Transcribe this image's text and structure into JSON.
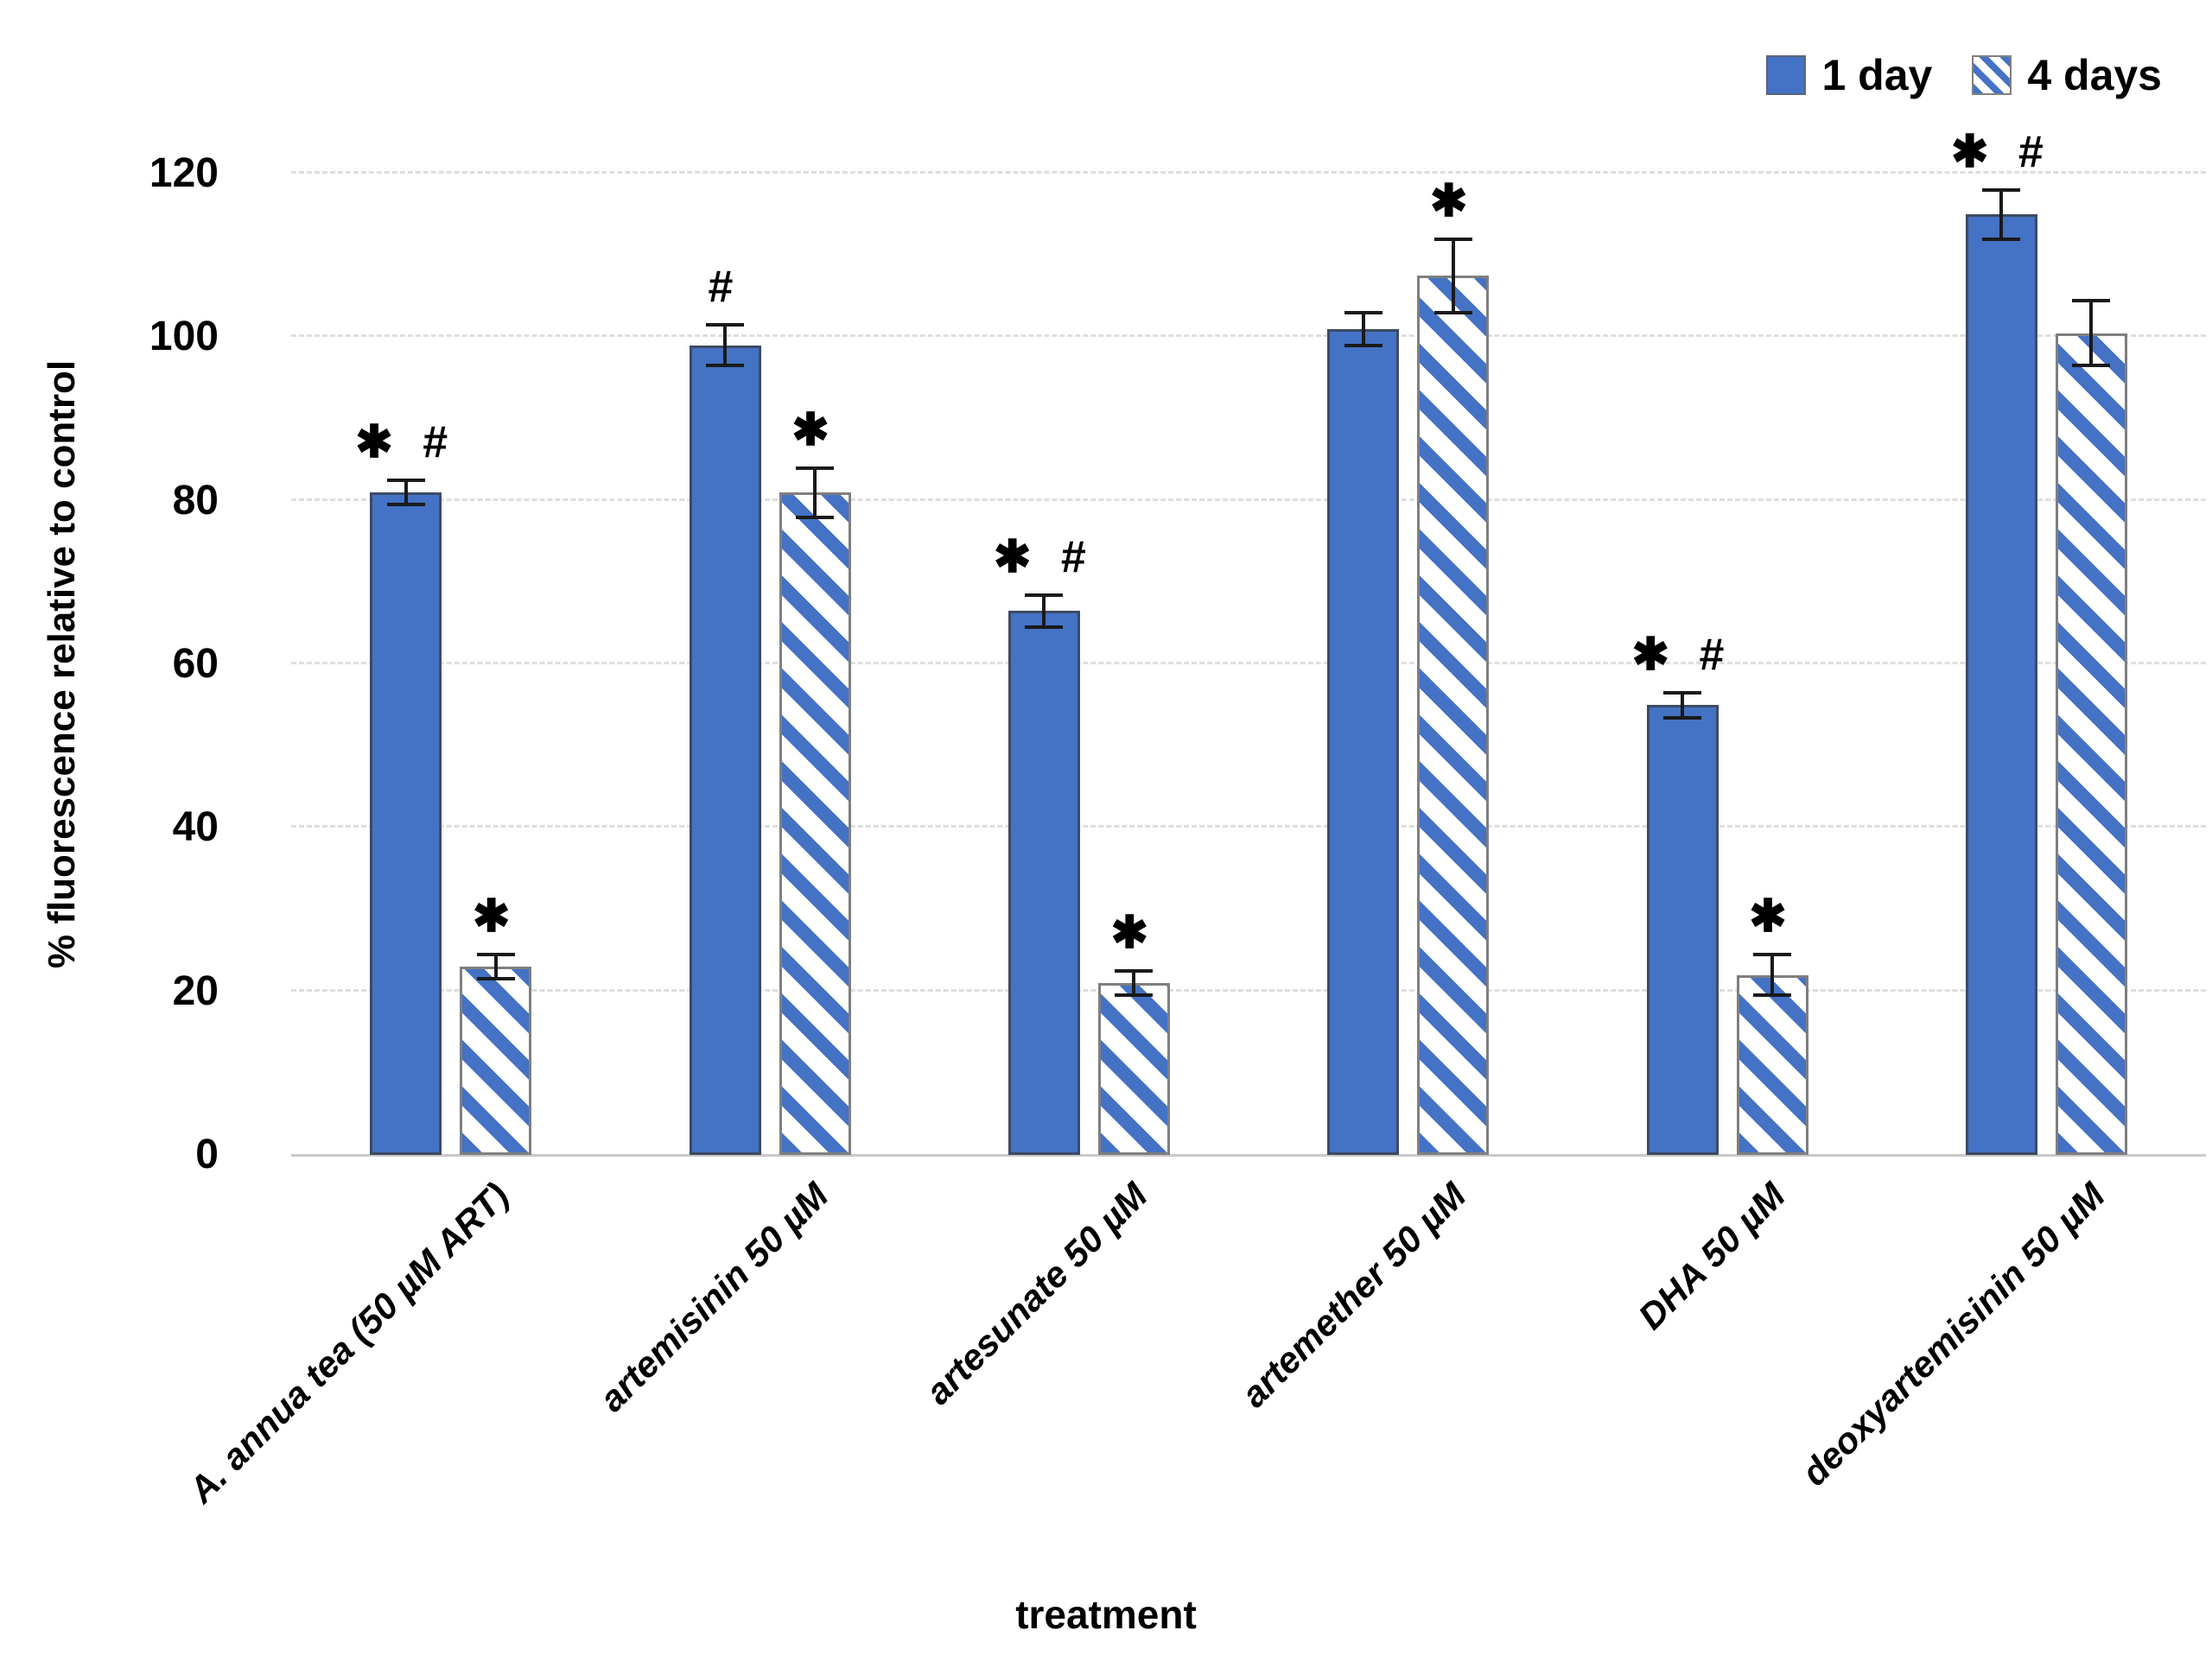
{
  "chart_data": {
    "type": "bar",
    "title": "",
    "xlabel": "treatment",
    "ylabel": "% fluorescence relative to control",
    "ylim": [
      0,
      120
    ],
    "yticks": [
      0,
      20,
      40,
      60,
      80,
      100,
      120
    ],
    "grid": "horizontal-dashed-light-gray",
    "legend_position": "top-right",
    "bar_color": "#4472C4",
    "categories": [
      "A. annua tea (50 µM ART)",
      "artemisinin 50 µM",
      "artesunate 50 µM",
      "artemether 50 µM",
      "DHA 50 µM",
      "deoxyartemisinin 50 µM"
    ],
    "series": [
      {
        "name": "1 day",
        "pattern": "solid",
        "values": [
          81,
          99,
          66.5,
          101,
          55,
          115
        ],
        "errors": [
          1.5,
          2.5,
          2,
          2,
          1.5,
          3
        ],
        "annotations": [
          "* #",
          "#",
          "* #",
          "",
          "* #",
          "* #"
        ]
      },
      {
        "name": "4 days",
        "pattern": "hatched",
        "values": [
          23,
          81,
          21,
          107.5,
          22,
          100.5
        ],
        "errors": [
          1.5,
          3,
          1.5,
          4.5,
          2.5,
          4
        ],
        "annotations": [
          "*",
          "*",
          "*",
          "*",
          "*",
          ""
        ]
      }
    ]
  },
  "legend": {
    "items": [
      {
        "label": "1 day",
        "swatch": "solid-blue-square"
      },
      {
        "label": "4 days",
        "swatch": "hatched-blue-square"
      }
    ]
  },
  "colors": {
    "bar_blue": "#4472C4",
    "gridline": "#dedede",
    "axis_line": "#c9c9c9",
    "error_bar": "#1a1a1a",
    "text": "#000000"
  }
}
